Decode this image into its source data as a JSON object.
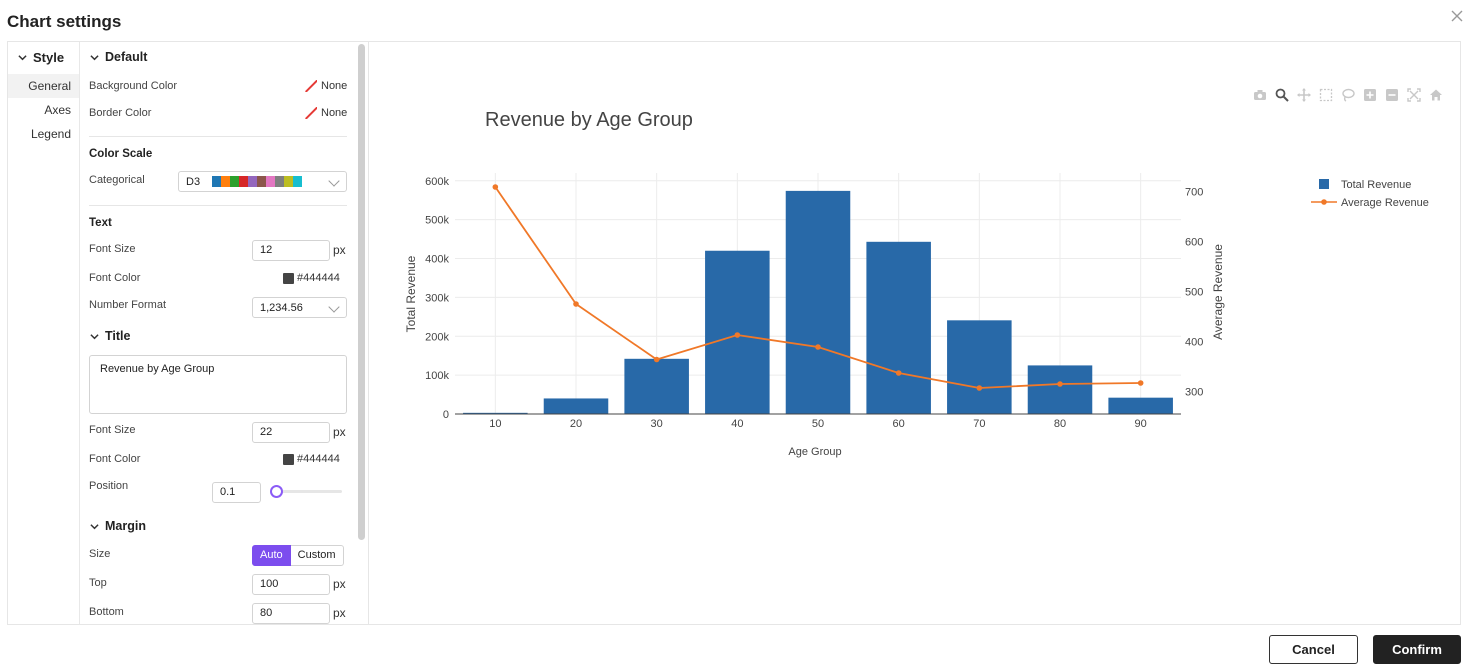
{
  "dialog": {
    "title": "Chart settings",
    "cancel_label": "Cancel",
    "confirm_label": "Confirm"
  },
  "nav": {
    "header": "Style",
    "items": [
      "General",
      "Axes",
      "Legend"
    ]
  },
  "settings": {
    "default": {
      "header": "Default",
      "background_label": "Background Color",
      "background_value": "None",
      "border_label": "Border Color",
      "border_value": "None"
    },
    "color_scale": {
      "header": "Color Scale",
      "categorical_label": "Categorical",
      "categorical_value": "D3",
      "palette": [
        "#1f77b4",
        "#ff7f0e",
        "#2ca02c",
        "#d62728",
        "#9467bd",
        "#8c564b",
        "#e377c2",
        "#7f7f7f",
        "#bcbd22",
        "#17becf"
      ]
    },
    "text": {
      "header": "Text",
      "font_size_label": "Font Size",
      "font_size_value": "12",
      "font_size_unit": "px",
      "font_color_label": "Font Color",
      "font_color_value": "#444444",
      "number_format_label": "Number Format",
      "number_format_value": "1,234.56"
    },
    "title": {
      "header": "Title",
      "text": "Revenue by Age Group",
      "font_size_label": "Font Size",
      "font_size_value": "22",
      "font_size_unit": "px",
      "font_color_label": "Font Color",
      "font_color_value": "#444444",
      "position_label": "Position",
      "position_value": "0.1"
    },
    "margin": {
      "header": "Margin",
      "size_label": "Size",
      "size_auto": "Auto",
      "size_custom": "Custom",
      "top_label": "Top",
      "top_value": "100",
      "top_unit": "px",
      "bottom_label": "Bottom",
      "bottom_value": "80",
      "bottom_unit": "px"
    }
  },
  "colors": {
    "accent": "#7c4dee",
    "bar": "#2869a8",
    "line": "#f07828"
  },
  "chart_data": {
    "type": "bar",
    "title": "Revenue by Age Group",
    "xlabel": "Age Group",
    "ylabel": "Total Revenue",
    "y2label": "Average Revenue",
    "x": [
      "10",
      "20",
      "30",
      "40",
      "50",
      "60",
      "70",
      "80",
      "90"
    ],
    "ylim": [
      0,
      620000
    ],
    "y2lim": [
      255,
      737
    ],
    "yticks": [
      "0",
      "100k",
      "200k",
      "300k",
      "400k",
      "500k",
      "600k"
    ],
    "y2ticks": [
      "300",
      "400",
      "500",
      "600",
      "700"
    ],
    "series": [
      {
        "name": "Total Revenue",
        "type": "bar",
        "axis": "y",
        "values": [
          3000,
          40000,
          142000,
          420000,
          574000,
          443000,
          241000,
          125000,
          42000
        ]
      },
      {
        "name": "Average Revenue",
        "type": "line",
        "axis": "y2",
        "values": [
          709,
          475,
          364,
          413,
          389,
          337,
          307,
          315,
          317
        ]
      }
    ],
    "legend_position": "top-right",
    "grid": true
  }
}
